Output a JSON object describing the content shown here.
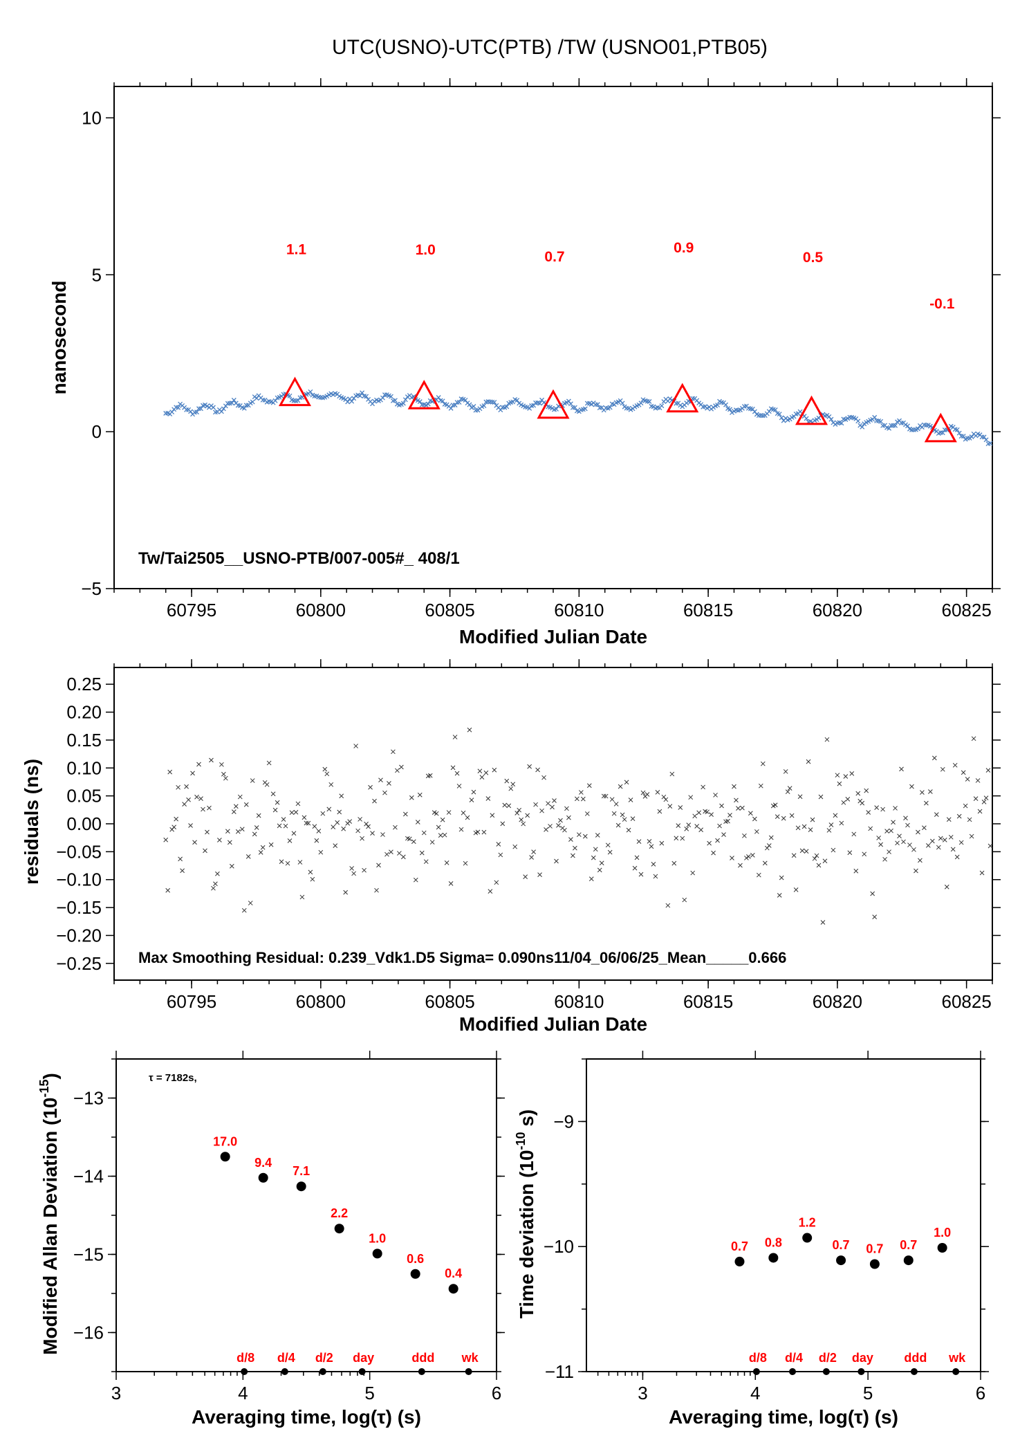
{
  "chart_data": [
    {
      "type": "scatter",
      "title": "UTC(USNO)-UTC(PTB)  /TW  (USNO01,PTB05)",
      "xlabel": "Modified Julian Date",
      "ylabel": "nanosecond",
      "xlim": [
        60792,
        60826
      ],
      "ylim": [
        -5,
        11
      ],
      "x_ticks": [
        "60795",
        "60800",
        "60805",
        "60810",
        "60815",
        "60820",
        "60825"
      ],
      "y_ticks": [
        "−5",
        "0",
        "5",
        "10"
      ],
      "annotation": "Tw/Tai2505__USNO-PTB/007-005#_  408/1",
      "series_color": "#4a7fc1",
      "triangles": [
        {
          "x": 60799,
          "y": 1.2,
          "label": "1.1"
        },
        {
          "x": 60804,
          "y": 1.1,
          "label": "1.0"
        },
        {
          "x": 60809,
          "y": 0.8,
          "label": "0.7"
        },
        {
          "x": 60814,
          "y": 1.0,
          "label": "0.9"
        },
        {
          "x": 60819,
          "y": 0.6,
          "label": "0.5"
        },
        {
          "x": 60824,
          "y": 0.05,
          "label": "-0.1"
        }
      ],
      "trend": [
        [
          60794,
          0.7
        ],
        [
          60796,
          0.75
        ],
        [
          60798,
          1.05
        ],
        [
          60800,
          1.15
        ],
        [
          60802,
          1.05
        ],
        [
          60804,
          1.0
        ],
        [
          60806,
          0.85
        ],
        [
          60808,
          0.85
        ],
        [
          60810,
          0.8
        ],
        [
          60812,
          0.85
        ],
        [
          60814,
          0.95
        ],
        [
          60816,
          0.75
        ],
        [
          60818,
          0.5
        ],
        [
          60820,
          0.4
        ],
        [
          60822,
          0.25
        ],
        [
          60824,
          0.1
        ],
        [
          60826,
          -0.3
        ]
      ]
    },
    {
      "type": "scatter",
      "xlabel": "Modified Julian Date",
      "ylabel": "residuals (ns)",
      "xlim": [
        60792,
        60826
      ],
      "ylim": [
        -0.28,
        0.28
      ],
      "x_ticks": [
        "60795",
        "60800",
        "60805",
        "60810",
        "60815",
        "60820",
        "60825"
      ],
      "y_ticks": [
        "−0.25",
        "−0.20",
        "−0.15",
        "−0.10",
        "−0.05",
        "0.00",
        "0.05",
        "0.10",
        "0.15",
        "0.20",
        "0.25"
      ],
      "annotation": "Max Smoothing Residual: 0.239_Vdk1.D5  Sigma= 0.090ns11/04_06/06/25_Mean_____0.666",
      "sigma_ns": 0.09
    },
    {
      "type": "scatter",
      "xlabel": "Averaging time, log(τ) (s)",
      "ylabel": "Modified Allan Deviation (10",
      "ylabel_sup": "-15",
      "ylabel_end": ")",
      "xlim": [
        3,
        6
      ],
      "ylim": [
        -16.5,
        -12.5
      ],
      "x_ticks": [
        "3",
        "4",
        "5",
        "6"
      ],
      "y_ticks": [
        "−16",
        "−15",
        "−14",
        "−13"
      ],
      "note": "τ = 7182s,",
      "points": [
        {
          "x": 3.86,
          "y": -13.75,
          "label": "17.0"
        },
        {
          "x": 4.16,
          "y": -14.02,
          "label": "9.4"
        },
        {
          "x": 4.46,
          "y": -14.13,
          "label": "7.1"
        },
        {
          "x": 4.76,
          "y": -14.67,
          "label": "2.2"
        },
        {
          "x": 5.06,
          "y": -14.99,
          "label": "1.0"
        },
        {
          "x": 5.36,
          "y": -15.25,
          "label": "0.6"
        },
        {
          "x": 5.66,
          "y": -15.44,
          "label": "0.4"
        }
      ],
      "markers": [
        {
          "x": 4.01,
          "label": "d/8"
        },
        {
          "x": 4.33,
          "label": "d/4"
        },
        {
          "x": 4.63,
          "label": "d/2"
        },
        {
          "x": 4.94,
          "label": "day"
        },
        {
          "x": 5.41,
          "label": "ddd"
        },
        {
          "x": 5.78,
          "label": "wk"
        }
      ]
    },
    {
      "type": "scatter",
      "xlabel": "Averaging time, log(τ) (s)",
      "ylabel": "Time deviation (10",
      "ylabel_sup": "-10",
      "ylabel_end": " s)",
      "xlim": [
        2.5,
        6
      ],
      "ylim": [
        -11,
        -8.5
      ],
      "x_ticks": [
        "3",
        "4",
        "5",
        "6"
      ],
      "y_ticks": [
        "−11",
        "−10",
        "−9"
      ],
      "points": [
        {
          "x": 3.86,
          "y": -10.12,
          "label": "0.7"
        },
        {
          "x": 4.16,
          "y": -10.09,
          "label": "0.8"
        },
        {
          "x": 4.46,
          "y": -9.93,
          "label": "1.2"
        },
        {
          "x": 4.76,
          "y": -10.11,
          "label": "0.7"
        },
        {
          "x": 5.06,
          "y": -10.14,
          "label": "0.7"
        },
        {
          "x": 5.36,
          "y": -10.11,
          "label": "0.7"
        },
        {
          "x": 5.66,
          "y": -10.01,
          "label": "1.0"
        }
      ],
      "markers": [
        {
          "x": 4.01,
          "label": "d/8"
        },
        {
          "x": 4.33,
          "label": "d/4"
        },
        {
          "x": 4.63,
          "label": "d/2"
        },
        {
          "x": 4.94,
          "label": "day"
        },
        {
          "x": 5.41,
          "label": "ddd"
        },
        {
          "x": 5.78,
          "label": "wk"
        }
      ]
    }
  ]
}
